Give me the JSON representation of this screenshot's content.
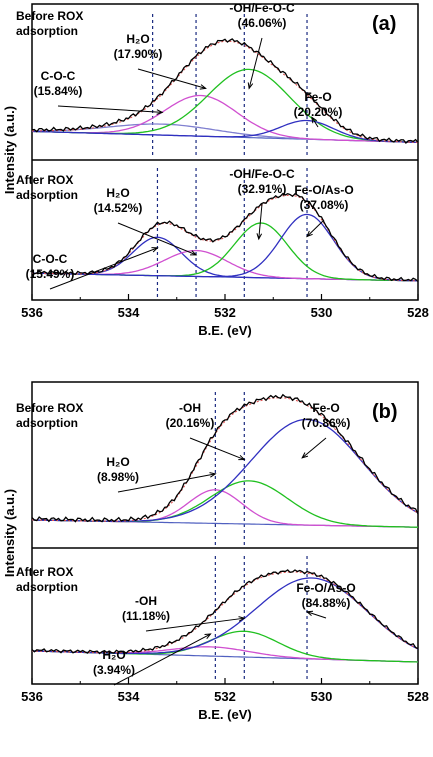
{
  "chart_data": [
    {
      "type": "line",
      "panel_label": "(a)",
      "xlabel": "B.E. (eV)",
      "ylabel": "Intensity (a.u.)",
      "xlim": [
        536,
        528
      ],
      "x_ticks": [
        "536",
        "534",
        "532",
        "530",
        "528"
      ],
      "x_reversed": true,
      "grid": false,
      "subplots": [
        {
          "title_lines": [
            "Before ROX",
            "adsorption"
          ],
          "reference_lines_eV": [
            533.5,
            532.6,
            531.6,
            530.3
          ],
          "annotations": [
            {
              "lines": [
                "C-O-C",
                "(15.84%)"
              ],
              "target_eV": 533.3
            },
            {
              "lines": [
                "H₂O",
                "(17.90%)"
              ],
              "target_eV": 532.4
            },
            {
              "lines": [
                "-OH/Fe-O-C",
                "(46.06%)"
              ],
              "target_eV": 531.5
            },
            {
              "lines": [
                "Fe-O",
                "(20.20%)"
              ],
              "target_eV": 530.2
            }
          ],
          "series": [
            {
              "name": "C-O-C",
              "color": "#8080d0",
              "center": 533.3,
              "height": 0.1,
              "width": 1.1
            },
            {
              "name": "H₂O",
              "color": "#d050d0",
              "center": 532.5,
              "height": 0.37,
              "width": 0.75
            },
            {
              "name": "-OH/Fe-O-C",
              "color": "#20c020",
              "center": 531.5,
              "height": 0.62,
              "width": 0.85
            },
            {
              "name": "Fe-O",
              "color": "#3030c0",
              "center": 530.3,
              "height": 0.17,
              "width": 0.55
            }
          ],
          "baseline": [
            0.06,
            -0.04
          ]
        },
        {
          "title_lines": [
            "After ROX",
            "adsorption"
          ],
          "reference_lines_eV": [
            533.4,
            532.6,
            531.6,
            530.3
          ],
          "annotations": [
            {
              "lines": [
                "C-O-C",
                "(15.49%)"
              ],
              "target_eV": 533.4
            },
            {
              "lines": [
                "H₂O",
                "(14.52%)"
              ],
              "target_eV": 532.6
            },
            {
              "lines": [
                "-OH/Fe-O-C",
                "(32.91%)"
              ],
              "target_eV": 531.3
            },
            {
              "lines": [
                "Fe-O/As-O",
                "(37.08%)"
              ],
              "target_eV": 530.3
            }
          ],
          "series": [
            {
              "name": "C-O-C",
              "color": "#3030c0",
              "center": 533.4,
              "height": 0.4,
              "width": 0.5
            },
            {
              "name": "H₂O",
              "color": "#d050d0",
              "center": 532.6,
              "height": 0.27,
              "width": 0.65
            },
            {
              "name": "-OH/Fe-O-C",
              "color": "#20c020",
              "center": 531.25,
              "height": 0.57,
              "width": 0.55
            },
            {
              "name": "Fe-O/As-O",
              "color": "#3030c0",
              "center": 530.3,
              "height": 0.67,
              "width": 0.55
            }
          ],
          "baseline": [
            0.05,
            -0.03
          ]
        }
      ]
    },
    {
      "type": "line",
      "panel_label": "(b)",
      "xlabel": "B.E. (eV)",
      "ylabel": "Intensity (a.u.)",
      "xlim": [
        536,
        528
      ],
      "x_ticks": [
        "536",
        "534",
        "532",
        "530",
        "528"
      ],
      "x_reversed": true,
      "grid": false,
      "subplots": [
        {
          "title_lines": [
            "Before ROX",
            "adsorption"
          ],
          "reference_lines_eV": [
            532.2,
            531.6
          ],
          "annotations": [
            {
              "lines": [
                "-OH",
                "(20.16%)"
              ],
              "target_eV": 531.6
            },
            {
              "lines": [
                "H₂O",
                "(8.98%)"
              ],
              "target_eV": 532.2
            },
            {
              "lines": [
                "Fe-O",
                "(70.86%)"
              ],
              "target_eV": 530.4
            }
          ],
          "series": [
            {
              "name": "H₂O",
              "color": "#d050d0",
              "center": 532.2,
              "height": 0.28,
              "width": 0.55
            },
            {
              "name": "-OH",
              "color": "#20c020",
              "center": 531.5,
              "height": 0.36,
              "width": 0.8
            },
            {
              "name": "Fe-O",
              "color": "#3030c0",
              "center": 530.3,
              "height": 0.88,
              "width": 1.15
            }
          ],
          "baseline": [
            0.05,
            -0.01
          ]
        },
        {
          "title_lines": [
            "After ROX",
            "adsorption"
          ],
          "reference_lines_eV": [
            532.2,
            531.6,
            530.3
          ],
          "annotations": [
            {
              "lines": [
                "-OH",
                "(11.18%)"
              ],
              "target_eV": 531.6
            },
            {
              "lines": [
                "H₂O",
                "(3.94%)"
              ],
              "target_eV": 532.3
            },
            {
              "lines": [
                "Fe-O/As-O",
                "(84.88%)"
              ],
              "target_eV": 530.3
            }
          ],
          "series": [
            {
              "name": "H₂O",
              "color": "#d050d0",
              "center": 532.3,
              "height": 0.1,
              "width": 0.8
            },
            {
              "name": "-OH",
              "color": "#20c020",
              "center": 531.6,
              "height": 0.28,
              "width": 0.7
            },
            {
              "name": "Fe-O/As-O",
              "color": "#3030c0",
              "center": 530.2,
              "height": 0.88,
              "width": 1.15
            }
          ],
          "baseline": [
            0.12,
            0.0
          ]
        }
      ]
    }
  ]
}
